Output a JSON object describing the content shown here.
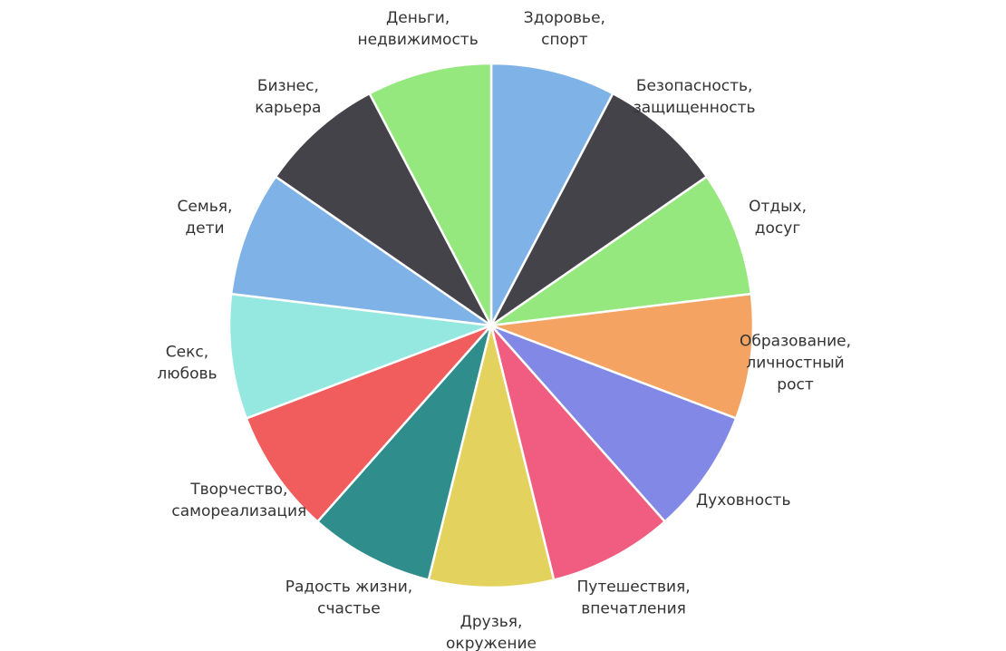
{
  "chart_data": {
    "type": "pie",
    "title": "",
    "start": "top",
    "direction": "clockwise",
    "legend": "none",
    "slices": [
      {
        "label": [
          "Здоровье,",
          "спорт"
        ],
        "value": 1,
        "color": "#7fb3e8"
      },
      {
        "label": [
          "Безопасность,",
          "защищенность"
        ],
        "value": 1,
        "color": "#44434a"
      },
      {
        "label": [
          "Отдых,",
          "досуг"
        ],
        "value": 1,
        "color": "#95e87d"
      },
      {
        "label": [
          "Образование,",
          "личностный",
          "рост"
        ],
        "value": 1,
        "color": "#f4a362"
      },
      {
        "label": [
          "Духовность"
        ],
        "value": 1,
        "color": "#8288e6"
      },
      {
        "label": [
          "Путешествия,",
          "впечатления"
        ],
        "value": 1,
        "color": "#f05d80"
      },
      {
        "label": [
          "Друзья,",
          "окружение"
        ],
        "value": 1,
        "color": "#e3d35e"
      },
      {
        "label": [
          "Радость жизни,",
          "счастье"
        ],
        "value": 1,
        "color": "#2f8e8b"
      },
      {
        "label": [
          "Творчество,",
          "самореализация"
        ],
        "value": 1,
        "color": "#f15c5d"
      },
      {
        "label": [
          "Секс,",
          "любовь"
        ],
        "value": 1,
        "color": "#95e8e0"
      },
      {
        "label": [
          "Семья,",
          "дети"
        ],
        "value": 1,
        "color": "#7fb3e8"
      },
      {
        "label": [
          "Бизнес,",
          "карьера"
        ],
        "value": 1,
        "color": "#44434a"
      },
      {
        "label": [
          "Деньги,",
          "недвижимость"
        ],
        "value": 1,
        "color": "#95e87d"
      }
    ]
  }
}
